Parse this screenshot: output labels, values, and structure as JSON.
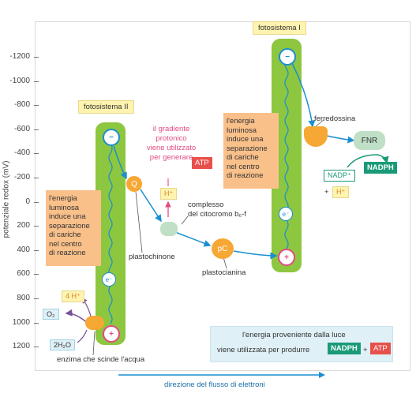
{
  "axis": {
    "ylabel": "potenziale redox (mV)",
    "ticks": [
      "-1200",
      "-1000",
      "-800",
      "-600",
      "-400",
      "-200",
      "0",
      "200",
      "400",
      "600",
      "800",
      "1000",
      "1200"
    ],
    "xlabel": "direzione del flusso di elettroni"
  },
  "ps2": {
    "title": "fotosistema II",
    "minus": "−",
    "plus": "+",
    "electron": "e⁻",
    "text": [
      "l'energia",
      "luminosa",
      "induce una",
      "separazione",
      "di cariche",
      "nel centro",
      "di reazione"
    ]
  },
  "ps1": {
    "title": "fotosistema I",
    "minus": "−",
    "plus": "+",
    "electron": "e⁻",
    "text": [
      "l'energia",
      "luminosa",
      "induce una",
      "separazione",
      "di cariche",
      "nel centro",
      "di reazione"
    ]
  },
  "nodes": {
    "q": "Q",
    "plastochinone": "plastochinone",
    "h_plus": "H⁺",
    "gradient": [
      "il gradiente",
      "protonico",
      "viene utilizzato",
      "per generare"
    ],
    "atp": "ATP",
    "cytochrome": [
      "complesso",
      "del citocromo b₆-f"
    ],
    "pc": "pC",
    "plastocianina": "plastocianina",
    "ferredossina": "ferredossina",
    "fnr": "FNR",
    "nadp_plus": "NADP⁺",
    "nadph": "NADPH",
    "plus_sign": "+",
    "h_plus_2": "H⁺"
  },
  "water": {
    "four_h": "4 H⁺",
    "o2": "O₂",
    "h2o": "2H₂O",
    "enzyme": "enzima che scinde l'acqua"
  },
  "info": {
    "line1": "l'energia proveniente dalla luce",
    "line2": "viene utilizzata per produrre",
    "nadph": "NADPH",
    "plus": "+",
    "atp": "ATP"
  },
  "colors": {
    "pill_green": "#8dc63f",
    "electron_blue": "#1a8fd0",
    "arrow_orange": "#f9c08a",
    "nadph_teal": "#1a9a77",
    "atp_red": "#e8504b",
    "gradient_pink": "#e24a84"
  }
}
